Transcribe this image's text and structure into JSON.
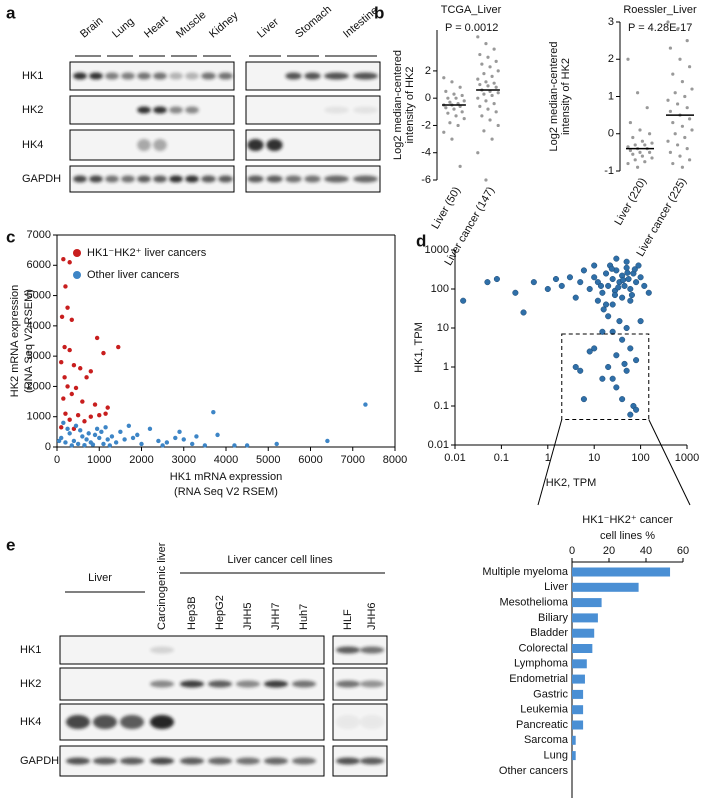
{
  "panel_labels": [
    "a",
    "b",
    "c",
    "d",
    "e"
  ],
  "blot_a": {
    "lanes": [
      "Brain",
      "Lung",
      "Heart",
      "Muscle",
      "Kidney",
      "Liver",
      "Stomach",
      "Intestine"
    ],
    "rows": [
      "HK1",
      "HK2",
      "HK4",
      "GAPDH"
    ]
  },
  "blot_e": {
    "liver_label": "Liver",
    "carcinogenic_label": "Carcinogenic liver",
    "cell_lines_label": "Liver cancer cell lines",
    "lanes": [
      "Hep3B",
      "HepG2",
      "JHH5",
      "JHH7",
      "Huh7",
      "HLF",
      "JHH6"
    ],
    "rows": [
      "HK1",
      "HK2",
      "HK4",
      "GAPDH"
    ]
  },
  "chart_data": [
    {
      "type": "strip",
      "title": "TCGA_Liver",
      "annotation": "P = 0.0012",
      "y_label": [
        "Log2 median-centered",
        "intensity of HK2"
      ],
      "categories": [
        "Liver (50)",
        "Liver cancer (147)"
      ],
      "color": "#999999",
      "values": [
        [
          1.5,
          1.2,
          0.8,
          0.5,
          0.3,
          0.2,
          0,
          0,
          -0.2,
          -0.3,
          -0.4,
          -0.5,
          -0.5,
          -0.6,
          -0.7,
          -0.8,
          -1,
          -1.1,
          -1.3,
          -1.5,
          -1.8,
          -2,
          -2.5,
          -3,
          -5
        ],
        [
          4.5,
          4,
          3.6,
          3.2,
          3,
          2.7,
          2.5,
          2.3,
          2,
          1.8,
          1.6,
          1.4,
          1.2,
          1.1,
          1,
          0.9,
          0.8,
          0.6,
          0.5,
          0.4,
          0.3,
          0.2,
          0,
          -0.2,
          -0.4,
          -0.6,
          -0.8,
          -1,
          -1.3,
          -1.6,
          -2,
          -2.4,
          -3,
          -4,
          -6
        ]
      ],
      "means": [
        -0.5,
        0.6
      ],
      "ylim": [
        -6,
        5
      ],
      "yticks": [
        -6,
        -4,
        -2,
        0,
        2
      ]
    },
    {
      "type": "strip",
      "title": "Roessler_Liver",
      "annotation": "P = 4.28E-17",
      "y_label": [
        "Log2 median-centered",
        "intensity of HK2"
      ],
      "categories": [
        "Liver (220)",
        "Liver cancer (225)"
      ],
      "color": "#999999",
      "values": [
        [
          2,
          1.1,
          0.7,
          0.3,
          0.1,
          0,
          -0.1,
          -0.2,
          -0.25,
          -0.3,
          -0.3,
          -0.35,
          -0.4,
          -0.4,
          -0.45,
          -0.5,
          -0.5,
          -0.55,
          -0.6,
          -0.65,
          -0.7,
          -0.75,
          -0.8,
          -0.9
        ],
        [
          3,
          2.8,
          2.5,
          2.3,
          2,
          1.8,
          1.6,
          1.4,
          1.2,
          1.1,
          1,
          0.9,
          0.8,
          0.7,
          0.6,
          0.5,
          0.4,
          0.3,
          0.2,
          0.1,
          0,
          -0.1,
          -0.2,
          -0.3,
          -0.4,
          -0.5,
          -0.6,
          -0.7,
          -0.8,
          -0.9
        ]
      ],
      "means": [
        -0.4,
        0.5
      ],
      "ylim": [
        -1,
        3
      ],
      "yticks": [
        -1,
        0,
        1,
        2,
        3
      ]
    },
    {
      "type": "scatter",
      "x_label": [
        "HK1 mRNA expression",
        "(RNA Seq V2 RSEM)"
      ],
      "y_label": [
        "HK2 mRNA expression",
        "(RNA Seq V2 RSEM)"
      ],
      "xlim": [
        0,
        8000
      ],
      "xticks": [
        0,
        1000,
        2000,
        3000,
        4000,
        5000,
        6000,
        7000,
        8000
      ],
      "ylim": [
        0,
        7000
      ],
      "yticks": [
        0,
        1000,
        2000,
        3000,
        4000,
        5000,
        6000,
        7000
      ],
      "legend": "top-left",
      "series": [
        {
          "name": "HK1⁻HK2⁺ liver cancers",
          "color": "#c81e1e",
          "x": [
            150,
            300,
            200,
            250,
            120,
            350,
            950,
            1450,
            180,
            300,
            1100,
            100,
            400,
            550,
            800,
            180,
            700,
            250,
            450,
            350,
            150,
            600,
            900,
            1200,
            200,
            500,
            1000,
            800,
            300,
            650,
            1150,
            100,
            400
          ],
          "values": [
            6200,
            6100,
            5300,
            4600,
            4300,
            4200,
            3600,
            3300,
            3300,
            3200,
            3100,
            2800,
            2700,
            2600,
            2500,
            2300,
            2300,
            2000,
            1950,
            1750,
            1600,
            1500,
            1400,
            1300,
            1100,
            1050,
            1050,
            1000,
            900,
            850,
            1100,
            650,
            600
          ]
        },
        {
          "name": "Other liver cancers",
          "color": "#3d85c6",
          "x": [
            100,
            200,
            300,
            400,
            500,
            600,
            700,
            800,
            900,
            1000,
            1100,
            1200,
            1300,
            1400,
            1500,
            1600,
            1800,
            2000,
            2200,
            2400,
            2600,
            2800,
            3000,
            3200,
            3500,
            3700,
            3800,
            4200,
            4500,
            5200,
            6400,
            7300,
            150,
            250,
            50,
            350,
            450,
            550,
            650,
            750,
            850,
            950,
            1050,
            1150,
            1250,
            1700,
            1900,
            2500,
            2900,
            3300
          ],
          "values": [
            300,
            150,
            450,
            200,
            100,
            350,
            250,
            150,
            400,
            300,
            100,
            250,
            350,
            150,
            500,
            250,
            300,
            100,
            600,
            200,
            150,
            300,
            250,
            100,
            50,
            1150,
            400,
            50,
            50,
            100,
            200,
            1400,
            800,
            600,
            200,
            50,
            700,
            550,
            60,
            450,
            80,
            600,
            500,
            650,
            50,
            700,
            400,
            50,
            500,
            350
          ]
        }
      ]
    },
    {
      "type": "scatter",
      "x_label": "HK2, TPM",
      "y_label": "HK1, TPM",
      "log_x": true,
      "log_y": true,
      "xlim": [
        0.01,
        1000
      ],
      "xticks": [
        0.01,
        0.1,
        1,
        10,
        100,
        1000
      ],
      "ylim": [
        0.01,
        1000
      ],
      "yticks": [
        0.01,
        0.1,
        1,
        10,
        100,
        1000
      ],
      "series": [
        {
          "color": "#2f6fa8",
          "x": [
            0.015,
            0.05,
            0.08,
            0.2,
            0.3,
            0.5,
            1,
            1.5,
            2,
            3,
            4,
            5,
            6,
            8,
            10,
            12,
            15,
            18,
            20,
            22,
            25,
            28,
            30,
            35,
            40,
            45,
            50,
            55,
            60,
            70,
            80,
            90,
            100,
            120,
            150,
            12,
            16,
            25,
            40,
            60,
            10,
            30,
            50,
            20,
            35,
            50,
            25,
            40,
            60,
            30,
            80,
            20,
            50,
            8,
            15,
            30,
            40,
            70,
            60,
            80,
            4,
            6,
            10,
            15,
            100,
            5,
            45,
            25,
            18,
            28,
            33,
            42,
            52,
            24,
            65,
            75,
            14
          ],
          "values": [
            50,
            150,
            180,
            80,
            25,
            150,
            100,
            180,
            120,
            200,
            60,
            150,
            300,
            100,
            200,
            150,
            80,
            250,
            120,
            400,
            180,
            90,
            300,
            150,
            220,
            120,
            350,
            180,
            100,
            250,
            150,
            400,
            200,
            120,
            80,
            50,
            30,
            40,
            60,
            50,
            400,
            600,
            500,
            20,
            15,
            10,
            8,
            5,
            3,
            2,
            1.5,
            1,
            0.8,
            2.5,
            0.5,
            0.3,
            0.15,
            0.1,
            0.06,
            0.08,
            1,
            0.15,
            3,
            8,
            15,
            0.8,
            1.2,
            0.5,
            40,
            70,
            110,
            170,
            260,
            330,
            70,
            320,
            120
          ]
        }
      ]
    },
    {
      "type": "bar",
      "orientation": "horizontal",
      "title": [
        "HK1⁻HK2⁺ cancer",
        "cell lines %"
      ],
      "color": "#4a8fd4",
      "categories": [
        "Multiple myeloma",
        "Liver",
        "Mesothelioma",
        "Biliary",
        "Bladder",
        "Colorectal",
        "Lymphoma",
        "Endometrial",
        "Gastric",
        "Leukemia",
        "Pancreatic",
        "Sarcoma",
        "Lung",
        "Other cancers"
      ],
      "values": [
        53,
        36,
        16,
        14,
        12,
        11,
        8,
        7,
        6,
        6,
        6,
        2,
        2,
        0
      ],
      "xlim": [
        0,
        60
      ],
      "xticks": [
        0,
        20,
        40,
        60
      ]
    }
  ]
}
